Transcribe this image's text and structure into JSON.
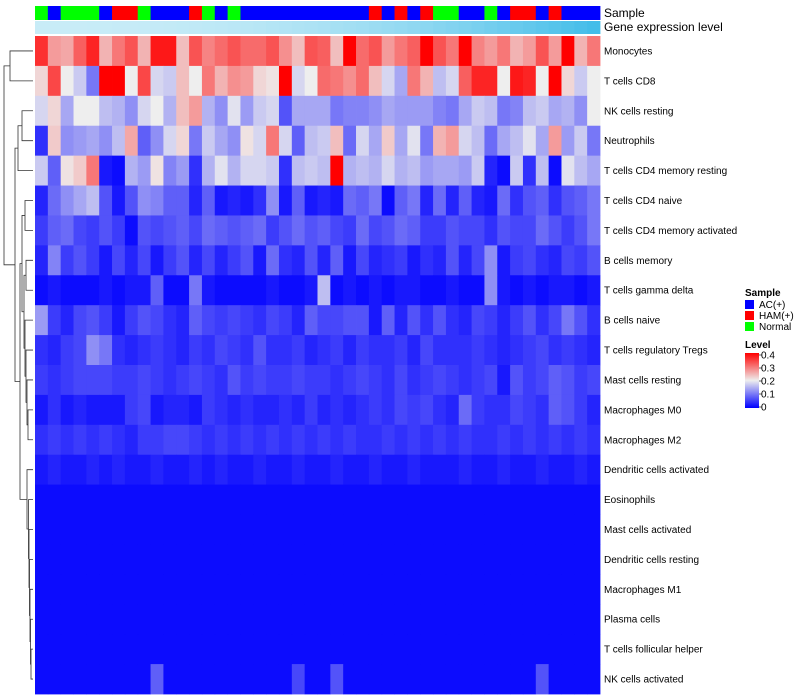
{
  "chart_data": {
    "type": "heatmap",
    "annotation_tracks": [
      "Sample",
      "Gene expression level"
    ],
    "sample_groups": [
      "N",
      "A",
      "N",
      "N",
      "N",
      "A",
      "H",
      "H",
      "N",
      "A",
      "A",
      "A",
      "H",
      "N",
      "A",
      "N",
      "A",
      "A",
      "A",
      "A",
      "A",
      "A",
      "A",
      "A",
      "A",
      "A",
      "H",
      "A",
      "H",
      "A",
      "H",
      "N",
      "N",
      "A",
      "A",
      "N",
      "A",
      "H",
      "H",
      "A",
      "H",
      "A",
      "A",
      "A"
    ],
    "rows": [
      {
        "name": "Monocytes",
        "values": [
          0.36,
          0.27,
          0.26,
          0.32,
          0.37,
          0.25,
          0.3,
          0.33,
          0.25,
          0.38,
          0.38,
          0.24,
          0.33,
          0.29,
          0.31,
          0.33,
          0.31,
          0.31,
          0.33,
          0.28,
          0.24,
          0.33,
          0.32,
          0.24,
          0.42,
          0.31,
          0.33,
          0.27,
          0.3,
          0.32,
          0.42,
          0.33,
          0.3,
          0.42,
          0.29,
          0.27,
          0.3,
          0.25,
          0.27,
          0.33,
          0.27,
          0.42,
          0.25,
          0.3
        ]
      },
      {
        "name": "T cells CD8",
        "values": [
          0.22,
          0.34,
          0.2,
          0.17,
          0.1,
          0.4,
          0.42,
          0.2,
          0.34,
          0.18,
          0.17,
          0.24,
          0.2,
          0.3,
          0.25,
          0.28,
          0.27,
          0.22,
          0.21,
          0.42,
          0.18,
          0.2,
          0.31,
          0.3,
          0.28,
          0.31,
          0.24,
          0.18,
          0.14,
          0.3,
          0.25,
          0.16,
          0.18,
          0.32,
          0.37,
          0.37,
          0.2,
          0.38,
          0.37,
          0.2,
          0.42,
          0.22,
          0.17,
          0.2
        ]
      },
      {
        "name": "NK cells resting",
        "values": [
          0.18,
          0.22,
          0.14,
          0.2,
          0.2,
          0.16,
          0.15,
          0.12,
          0.18,
          0.2,
          0.15,
          0.24,
          0.27,
          0.15,
          0.12,
          0.19,
          0.13,
          0.17,
          0.18,
          0.07,
          0.14,
          0.14,
          0.14,
          0.1,
          0.11,
          0.11,
          0.12,
          0.14,
          0.13,
          0.13,
          0.13,
          0.11,
          0.1,
          0.14,
          0.17,
          0.16,
          0.1,
          0.11,
          0.16,
          0.17,
          0.14,
          0.15,
          0.12,
          0.2
        ]
      },
      {
        "name": "Neutrophils",
        "values": [
          0.04,
          0.23,
          0.12,
          0.13,
          0.14,
          0.12,
          0.16,
          0.26,
          0.08,
          0.12,
          0.18,
          0.22,
          0.1,
          0.17,
          0.14,
          0.12,
          0.21,
          0.18,
          0.3,
          0.18,
          0.08,
          0.16,
          0.17,
          0.24,
          0.09,
          0.18,
          0.14,
          0.23,
          0.14,
          0.19,
          0.1,
          0.25,
          0.27,
          0.18,
          0.16,
          0.09,
          0.14,
          0.16,
          0.19,
          0.14,
          0.27,
          0.13,
          0.17,
          0.1
        ]
      },
      {
        "name": "T cells CD4 memory resting",
        "values": [
          0.17,
          0.08,
          0.21,
          0.23,
          0.3,
          0.02,
          0.01,
          0.15,
          0.13,
          0.21,
          0.11,
          0.13,
          0.04,
          0.15,
          0.19,
          0.15,
          0.18,
          0.18,
          0.17,
          0.04,
          0.16,
          0.17,
          0.16,
          0.43,
          0.15,
          0.16,
          0.15,
          0.18,
          0.15,
          0.16,
          0.13,
          0.14,
          0.14,
          0.13,
          0.17,
          0.03,
          0.01,
          0.17,
          0.04,
          0.16,
          0.01,
          0.19,
          0.16,
          0.14
        ]
      },
      {
        "name": "T cells CD4 naive",
        "values": [
          0.03,
          0.09,
          0.12,
          0.14,
          0.16,
          0.07,
          0.02,
          0.07,
          0.12,
          0.11,
          0.08,
          0.08,
          0.03,
          0.08,
          0.02,
          0.03,
          0.02,
          0.04,
          0.12,
          0.02,
          0.08,
          0.02,
          0.03,
          0.02,
          0.09,
          0.08,
          0.1,
          0.01,
          0.08,
          0.1,
          0.03,
          0.09,
          0.03,
          0.08,
          0.03,
          0.02,
          0.09,
          0.04,
          0.07,
          0.08,
          0.04,
          0.07,
          0.08,
          0.1
        ]
      },
      {
        "name": "T cells CD4 memory activated",
        "values": [
          0.05,
          0.08,
          0.09,
          0.06,
          0.05,
          0.07,
          0.05,
          0.01,
          0.07,
          0.06,
          0.07,
          0.08,
          0.06,
          0.09,
          0.08,
          0.07,
          0.08,
          0.09,
          0.05,
          0.07,
          0.09,
          0.07,
          0.08,
          0.06,
          0.05,
          0.09,
          0.06,
          0.07,
          0.09,
          0.08,
          0.05,
          0.05,
          0.07,
          0.06,
          0.06,
          0.04,
          0.07,
          0.06,
          0.06,
          0.09,
          0.07,
          0.05,
          0.07,
          0.1
        ]
      },
      {
        "name": "B cells memory",
        "values": [
          0.03,
          0.11,
          0.05,
          0.07,
          0.05,
          0.02,
          0.06,
          0.03,
          0.06,
          0.02,
          0.05,
          0.07,
          0.03,
          0.06,
          0.03,
          0.05,
          0.07,
          0.02,
          0.09,
          0.04,
          0.03,
          0.07,
          0.03,
          0.08,
          0.02,
          0.06,
          0.03,
          0.04,
          0.05,
          0.02,
          0.04,
          0.03,
          0.07,
          0.03,
          0.06,
          0.12,
          0.02,
          0.05,
          0.06,
          0.04,
          0.03,
          0.06,
          0.05,
          0.07
        ]
      },
      {
        "name": "T cells gamma delta",
        "values": [
          0.01,
          0.02,
          0.01,
          0.01,
          0.01,
          0.02,
          0.01,
          0.02,
          0.02,
          0.08,
          0.01,
          0.01,
          0.1,
          0.02,
          0.01,
          0.01,
          0.01,
          0.01,
          0.02,
          0.01,
          0.01,
          0.02,
          0.16,
          0.01,
          0.02,
          0.01,
          0.02,
          0.01,
          0.02,
          0.02,
          0.01,
          0.01,
          0.02,
          0.01,
          0.01,
          0.12,
          0.02,
          0.01,
          0.02,
          0.01,
          0.02,
          0.02,
          0.01,
          0.02
        ]
      },
      {
        "name": "B cells naive",
        "values": [
          0.13,
          0.05,
          0.03,
          0.06,
          0.07,
          0.05,
          0.02,
          0.05,
          0.07,
          0.06,
          0.04,
          0.03,
          0.08,
          0.06,
          0.05,
          0.06,
          0.05,
          0.04,
          0.06,
          0.05,
          0.03,
          0.08,
          0.06,
          0.06,
          0.07,
          0.07,
          0.02,
          0.08,
          0.03,
          0.07,
          0.04,
          0.07,
          0.04,
          0.03,
          0.06,
          0.05,
          0.03,
          0.05,
          0.07,
          0.04,
          0.06,
          0.1,
          0.07,
          0.04
        ]
      },
      {
        "name": "T cells regulatory  Tregs",
        "values": [
          0.04,
          0.03,
          0.05,
          0.06,
          0.12,
          0.1,
          0.04,
          0.03,
          0.04,
          0.05,
          0.04,
          0.03,
          0.05,
          0.04,
          0.06,
          0.05,
          0.04,
          0.07,
          0.04,
          0.04,
          0.05,
          0.03,
          0.04,
          0.05,
          0.03,
          0.05,
          0.04,
          0.04,
          0.05,
          0.03,
          0.06,
          0.04,
          0.04,
          0.04,
          0.05,
          0.04,
          0.03,
          0.04,
          0.05,
          0.06,
          0.04,
          0.05,
          0.04,
          0.03
        ]
      },
      {
        "name": "Mast cells resting",
        "values": [
          0.05,
          0.04,
          0.05,
          0.06,
          0.06,
          0.06,
          0.05,
          0.05,
          0.06,
          0.05,
          0.04,
          0.05,
          0.06,
          0.05,
          0.04,
          0.07,
          0.05,
          0.06,
          0.05,
          0.05,
          0.06,
          0.05,
          0.05,
          0.04,
          0.05,
          0.06,
          0.05,
          0.04,
          0.06,
          0.04,
          0.05,
          0.06,
          0.05,
          0.04,
          0.05,
          0.06,
          0.02,
          0.07,
          0.05,
          0.06,
          0.08,
          0.07,
          0.05,
          0.06
        ]
      },
      {
        "name": "Macrophages M0",
        "values": [
          0.02,
          0.04,
          0.02,
          0.03,
          0.02,
          0.02,
          0.02,
          0.05,
          0.06,
          0.02,
          0.03,
          0.03,
          0.02,
          0.05,
          0.04,
          0.03,
          0.04,
          0.03,
          0.03,
          0.04,
          0.03,
          0.05,
          0.03,
          0.04,
          0.03,
          0.04,
          0.05,
          0.04,
          0.06,
          0.05,
          0.06,
          0.04,
          0.03,
          0.09,
          0.05,
          0.04,
          0.04,
          0.06,
          0.05,
          0.04,
          0.08,
          0.07,
          0.05,
          0.03
        ]
      },
      {
        "name": "Macrophages M2",
        "values": [
          0.04,
          0.05,
          0.04,
          0.05,
          0.04,
          0.05,
          0.04,
          0.03,
          0.05,
          0.05,
          0.06,
          0.06,
          0.05,
          0.04,
          0.05,
          0.04,
          0.05,
          0.04,
          0.05,
          0.04,
          0.05,
          0.04,
          0.05,
          0.04,
          0.05,
          0.04,
          0.04,
          0.05,
          0.04,
          0.05,
          0.04,
          0.05,
          0.04,
          0.05,
          0.04,
          0.04,
          0.05,
          0.04,
          0.05,
          0.04,
          0.05,
          0.04,
          0.05,
          0.04
        ]
      },
      {
        "name": "Dendritic cells activated",
        "values": [
          0.02,
          0.03,
          0.02,
          0.02,
          0.03,
          0.02,
          0.03,
          0.02,
          0.02,
          0.03,
          0.02,
          0.02,
          0.03,
          0.02,
          0.03,
          0.02,
          0.02,
          0.03,
          0.02,
          0.02,
          0.03,
          0.02,
          0.02,
          0.03,
          0.02,
          0.02,
          0.03,
          0.02,
          0.02,
          0.03,
          0.02,
          0.02,
          0.02,
          0.03,
          0.02,
          0.02,
          0.03,
          0.02,
          0.02,
          0.03,
          0.02,
          0.02,
          0.03,
          0.02
        ]
      },
      {
        "name": "Eosinophils",
        "values": [
          0.01,
          0.01,
          0.01,
          0.01,
          0.01,
          0.01,
          0.01,
          0.01,
          0.01,
          0.01,
          0.01,
          0.01,
          0.01,
          0.01,
          0.01,
          0.01,
          0.01,
          0.01,
          0.01,
          0.01,
          0.01,
          0.01,
          0.01,
          0.01,
          0.01,
          0.01,
          0.01,
          0.01,
          0.01,
          0.01,
          0.01,
          0.01,
          0.01,
          0.01,
          0.01,
          0.01,
          0.01,
          0.01,
          0.01,
          0.01,
          0.01,
          0.01,
          0.01,
          0.01
        ]
      },
      {
        "name": "Mast cells activated",
        "values": [
          0.01,
          0.01,
          0.01,
          0.01,
          0.01,
          0.01,
          0.01,
          0.01,
          0.01,
          0.01,
          0.01,
          0.01,
          0.01,
          0.01,
          0.01,
          0.01,
          0.01,
          0.01,
          0.01,
          0.01,
          0.01,
          0.01,
          0.01,
          0.01,
          0.01,
          0.01,
          0.01,
          0.01,
          0.01,
          0.01,
          0.01,
          0.01,
          0.01,
          0.01,
          0.01,
          0.01,
          0.01,
          0.01,
          0.01,
          0.01,
          0.01,
          0.01,
          0.01,
          0.01
        ]
      },
      {
        "name": "Dendritic cells resting",
        "values": [
          0.01,
          0.01,
          0.01,
          0.01,
          0.01,
          0.01,
          0.01,
          0.01,
          0.01,
          0.01,
          0.01,
          0.01,
          0.01,
          0.01,
          0.01,
          0.01,
          0.01,
          0.01,
          0.01,
          0.01,
          0.01,
          0.01,
          0.01,
          0.01,
          0.01,
          0.01,
          0.01,
          0.01,
          0.01,
          0.01,
          0.01,
          0.01,
          0.01,
          0.01,
          0.01,
          0.01,
          0.01,
          0.01,
          0.01,
          0.01,
          0.01,
          0.01,
          0.01,
          0.01
        ]
      },
      {
        "name": "Macrophages M1",
        "values": [
          0.01,
          0.01,
          0.01,
          0.01,
          0.01,
          0.01,
          0.01,
          0.01,
          0.01,
          0.01,
          0.01,
          0.01,
          0.01,
          0.01,
          0.01,
          0.01,
          0.01,
          0.01,
          0.01,
          0.01,
          0.01,
          0.01,
          0.01,
          0.01,
          0.01,
          0.01,
          0.01,
          0.01,
          0.01,
          0.01,
          0.01,
          0.01,
          0.01,
          0.01,
          0.01,
          0.01,
          0.01,
          0.01,
          0.01,
          0.01,
          0.01,
          0.01,
          0.01,
          0.01
        ]
      },
      {
        "name": "Plasma cells",
        "values": [
          0.01,
          0.01,
          0.01,
          0.01,
          0.01,
          0.01,
          0.01,
          0.01,
          0.01,
          0.01,
          0.01,
          0.01,
          0.01,
          0.01,
          0.01,
          0.01,
          0.01,
          0.01,
          0.01,
          0.01,
          0.01,
          0.01,
          0.01,
          0.01,
          0.01,
          0.01,
          0.01,
          0.01,
          0.01,
          0.01,
          0.01,
          0.01,
          0.01,
          0.01,
          0.01,
          0.01,
          0.01,
          0.01,
          0.01,
          0.01,
          0.01,
          0.01,
          0.01,
          0.01
        ]
      },
      {
        "name": "T cells follicular helper",
        "values": [
          0.01,
          0.01,
          0.01,
          0.01,
          0.01,
          0.01,
          0.01,
          0.01,
          0.01,
          0.01,
          0.01,
          0.01,
          0.01,
          0.01,
          0.01,
          0.01,
          0.01,
          0.01,
          0.01,
          0.01,
          0.01,
          0.01,
          0.01,
          0.01,
          0.01,
          0.01,
          0.01,
          0.01,
          0.01,
          0.01,
          0.01,
          0.01,
          0.01,
          0.01,
          0.01,
          0.01,
          0.01,
          0.01,
          0.01,
          0.01,
          0.01,
          0.01,
          0.01,
          0.01
        ]
      },
      {
        "name": "NK cells activated",
        "values": [
          0.01,
          0.01,
          0.01,
          0.01,
          0.01,
          0.01,
          0.01,
          0.01,
          0.01,
          0.08,
          0.01,
          0.01,
          0.01,
          0.01,
          0.01,
          0.01,
          0.01,
          0.01,
          0.01,
          0.01,
          0.06,
          0.01,
          0.01,
          0.07,
          0.01,
          0.01,
          0.01,
          0.01,
          0.01,
          0.01,
          0.01,
          0.01,
          0.01,
          0.01,
          0.01,
          0.01,
          0.01,
          0.01,
          0.01,
          0.07,
          0.01,
          0.01,
          0.01,
          0.01
        ]
      }
    ],
    "legend": {
      "sample_title": "Sample",
      "sample_items": [
        {
          "key": "A",
          "label": "AC(+)",
          "color": "#0000ff"
        },
        {
          "key": "H",
          "label": "HAM(+)",
          "color": "#ff0000"
        },
        {
          "key": "N",
          "label": "Normal",
          "color": "#00ff00"
        }
      ],
      "level_title": "Level",
      "level_ticks": [
        "0.4",
        "0.3",
        "0.2",
        "0.1",
        "0"
      ],
      "level_range": [
        0,
        0.4
      ]
    },
    "colors": {
      "low": "#0000ff",
      "mid": "#eeeeee",
      "high": "#ff0000",
      "expression_track": "#c8ecf7",
      "expression_track_end": "#43bde9"
    }
  }
}
